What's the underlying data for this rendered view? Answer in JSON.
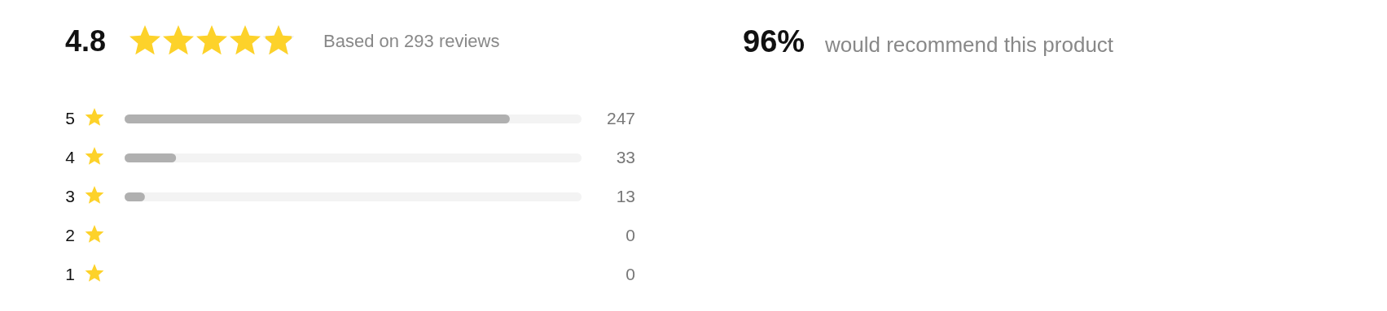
{
  "chart_data": {
    "type": "bar",
    "orientation": "horizontal",
    "title": "4.8",
    "subtitle": "Based on 293 reviews",
    "annotations": [
      "96%",
      "would recommend this product"
    ],
    "categories": [
      "5",
      "4",
      "3",
      "2",
      "1"
    ],
    "values": [
      247,
      33,
      13,
      0,
      0
    ],
    "color": "#b0b0b0",
    "tick_labels": "y",
    "data_labels": true
  }
}
